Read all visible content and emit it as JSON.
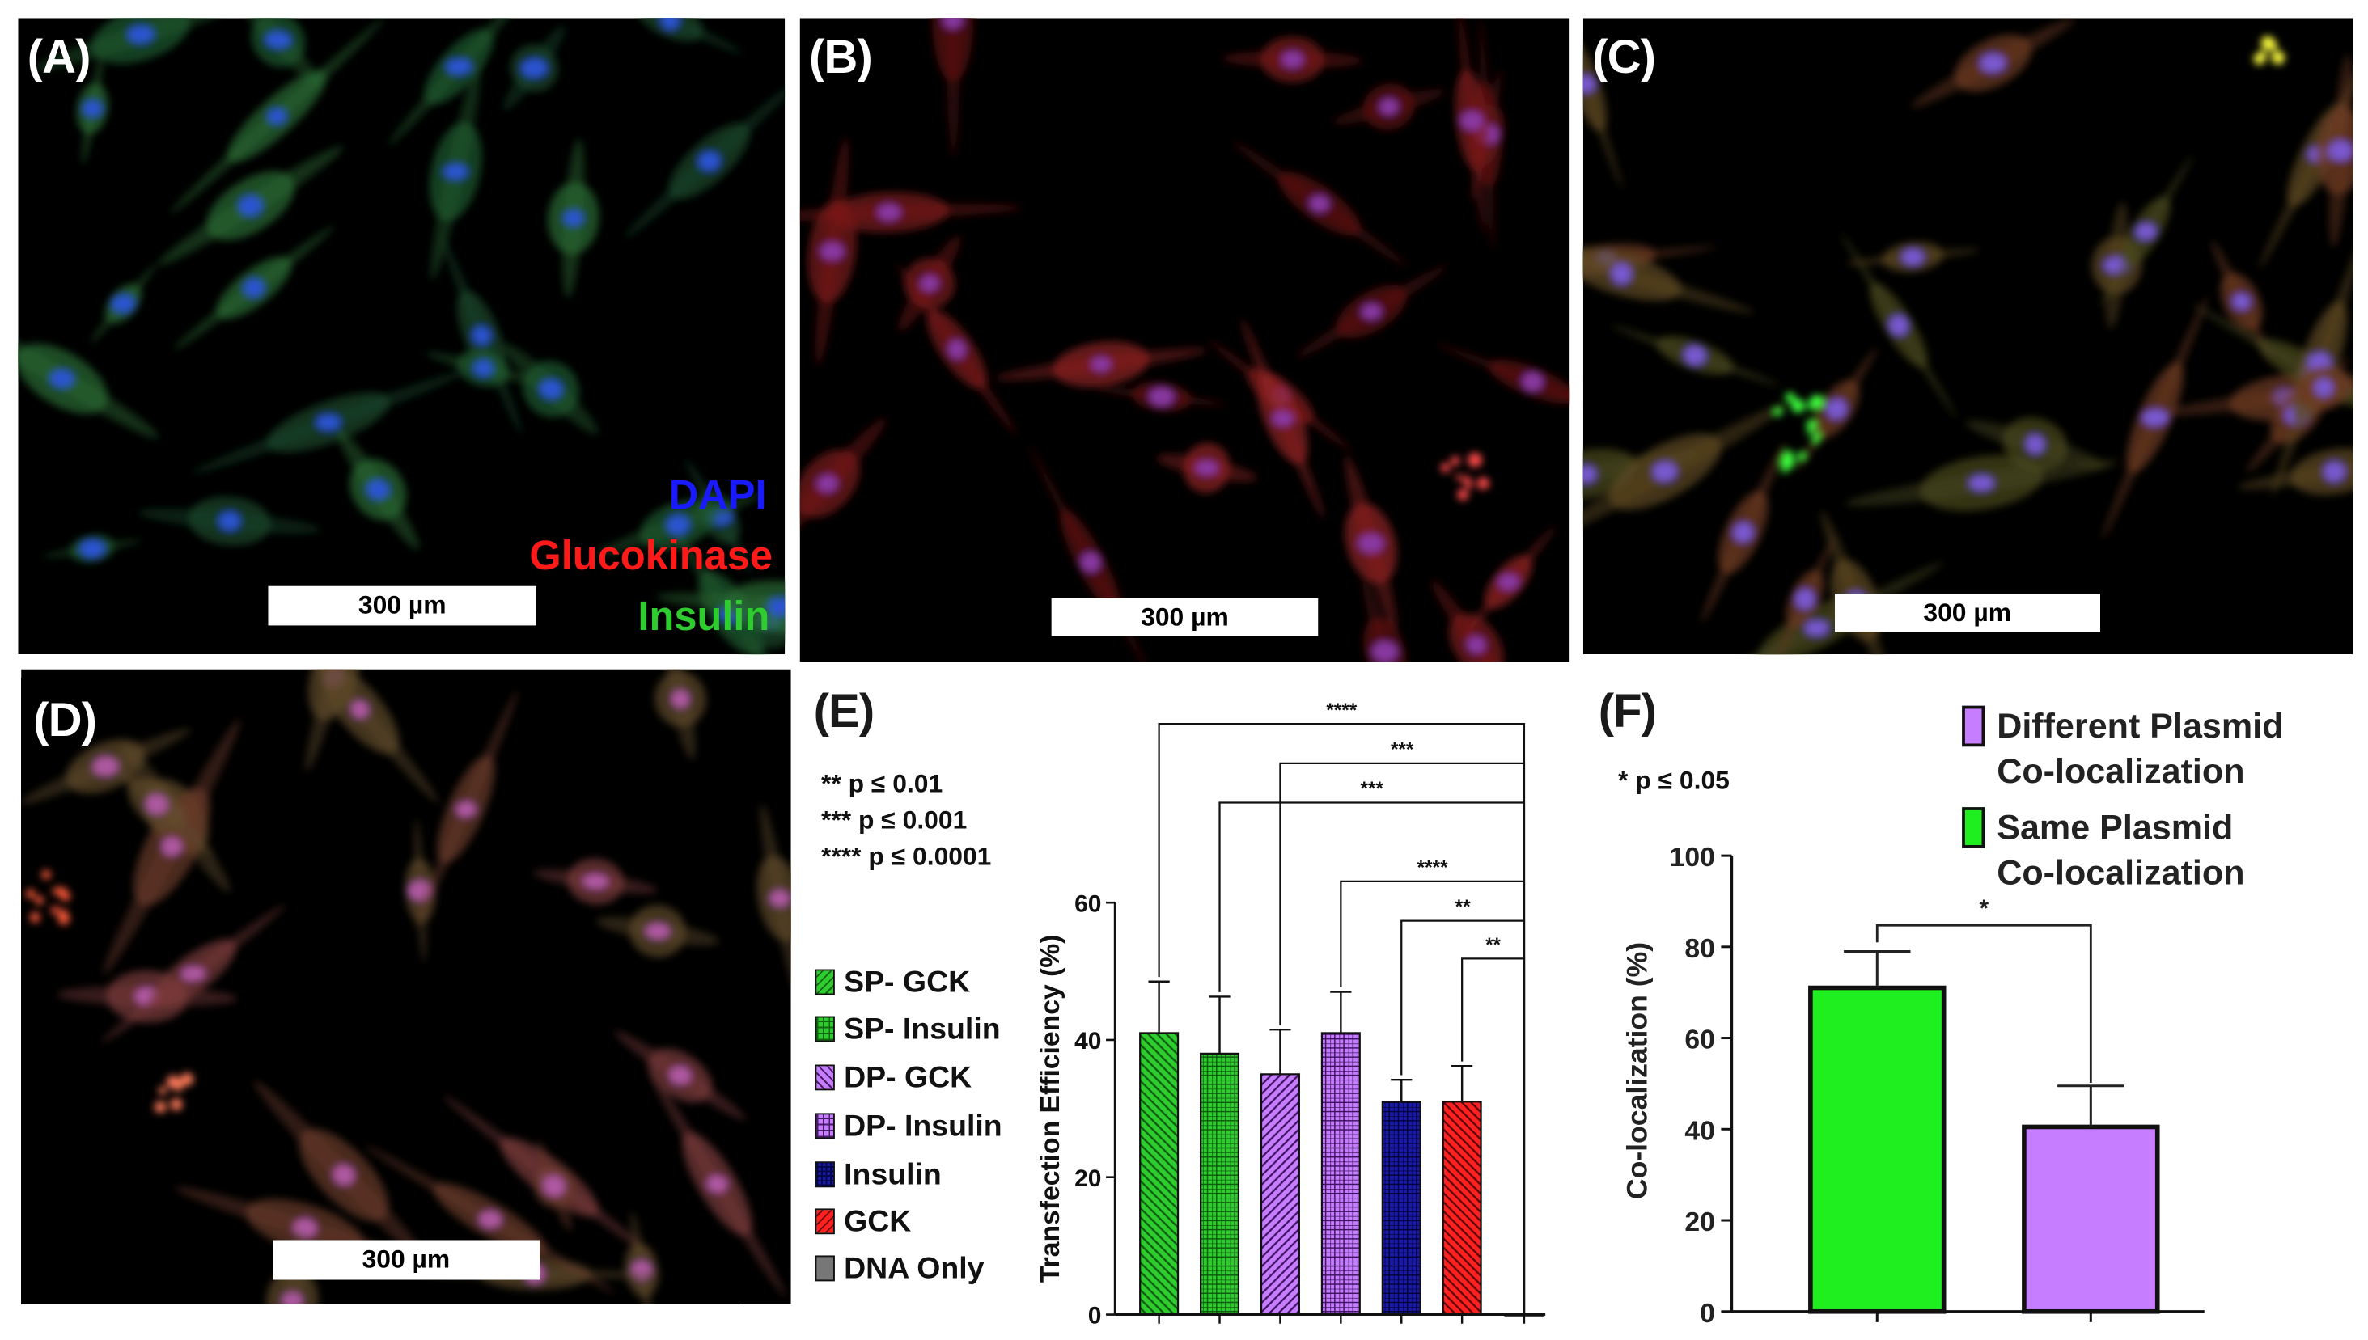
{
  "panels": {
    "A": {
      "label": "(A)",
      "scale_bar": "300 µm"
    },
    "B": {
      "label": "(B)",
      "scale_bar": "300 µm"
    },
    "C": {
      "label": "(C)",
      "scale_bar": "300 µm"
    },
    "D": {
      "label": "(D)",
      "scale_bar": "300 µm"
    },
    "E": {
      "label": "(E)"
    },
    "F": {
      "label": "(F)"
    }
  },
  "stain_legend": [
    {
      "text": "DAPI",
      "color": "#1a1aff"
    },
    {
      "text": "Glucokinase",
      "color": "#ff1a1a"
    },
    {
      "text": "Insulin",
      "color": "#2ecc2e"
    }
  ],
  "chart_data": [
    {
      "type": "bar",
      "panel": "E",
      "ylabel": "Transfection Efficiency (%)",
      "ylim": [
        0,
        60
      ],
      "yticks": [
        0,
        20,
        40,
        60
      ],
      "significance_key": [
        "** p ≤ 0.01",
        "*** p ≤ 0.001",
        "**** p ≤ 0.0001"
      ],
      "legend_placement": "left",
      "series": [
        {
          "name": "SP- GCK",
          "value": 41,
          "error": 7.5,
          "color": "#2ecc2e",
          "pattern": "diag-left"
        },
        {
          "name": "SP- Insulin",
          "value": 38,
          "error": 8.3,
          "color": "#2ecc2e",
          "pattern": "grid"
        },
        {
          "name": "DP- GCK",
          "value": 35,
          "error": 6.5,
          "color": "#c77dff",
          "pattern": "diag-right"
        },
        {
          "name": "DP- Insulin",
          "value": 41,
          "error": 6.0,
          "color": "#c77dff",
          "pattern": "grid"
        },
        {
          "name": "Insulin",
          "value": 31,
          "error": 3.2,
          "color": "#1a1aa8",
          "pattern": "grid"
        },
        {
          "name": "GCK",
          "value": 31,
          "error": 5.2,
          "color": "#ff2020",
          "pattern": "diag-left"
        },
        {
          "name": "DNA Only",
          "value": 0,
          "error": 0,
          "color": "#777777",
          "pattern": "solid"
        }
      ],
      "comparisons": [
        {
          "from": 0,
          "to": 6,
          "label": "****"
        },
        {
          "from": 2,
          "to": 6,
          "label": "***"
        },
        {
          "from": 1,
          "to": 6,
          "label": "***"
        },
        {
          "from": 3,
          "to": 6,
          "label": "****"
        },
        {
          "from": 4,
          "to": 6,
          "label": "**"
        },
        {
          "from": 5,
          "to": 6,
          "label": "**"
        }
      ]
    },
    {
      "type": "bar",
      "panel": "F",
      "ylabel": "Co-localization (%)",
      "ylim": [
        0,
        100
      ],
      "yticks": [
        0,
        20,
        40,
        60,
        80,
        100
      ],
      "significance_key": [
        "* p ≤ 0.05"
      ],
      "legend_placement": "top-right",
      "series": [
        {
          "name": "Same Plasmid Co-localization",
          "legend_lines": [
            "Same Plasmid",
            "Co-localization"
          ],
          "value": 71,
          "error": 8,
          "color": "#1fef1f"
        },
        {
          "name": "Different Plasmid Co-localization",
          "legend_lines": [
            "Different Plasmid",
            "Co-localization"
          ],
          "value": 40.5,
          "error": 9,
          "color": "#c77dff"
        }
      ],
      "comparisons": [
        {
          "from": 0,
          "to": 1,
          "label": "*"
        }
      ]
    }
  ]
}
